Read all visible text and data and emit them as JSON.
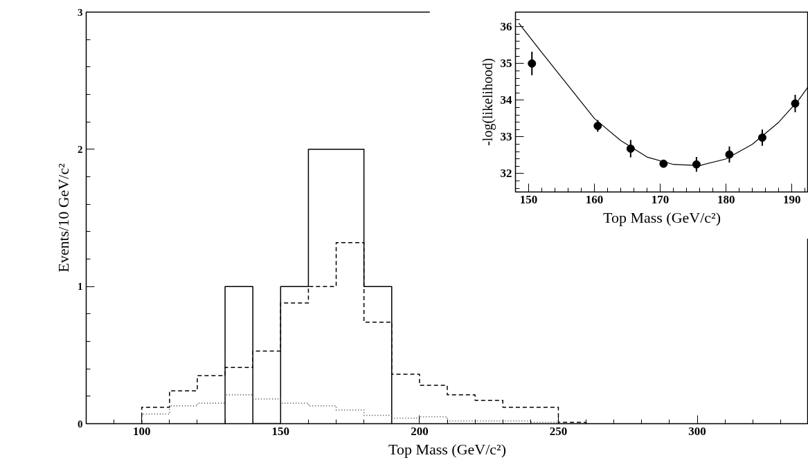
{
  "chart_data": [
    {
      "type": "histogram",
      "xlabel": "Top Mass (GeV/c²)",
      "ylabel": "Events/10 GeV/c²",
      "xlim": [
        80,
        340
      ],
      "ylim": [
        0,
        3
      ],
      "xticks": [
        100,
        150,
        200,
        250,
        300
      ],
      "yticks": [
        0,
        1,
        2,
        3
      ],
      "grid": false,
      "bins": [
        100,
        110,
        120,
        130,
        140,
        150,
        160,
        170,
        180,
        190,
        200,
        210,
        220,
        230,
        240,
        250,
        260
      ],
      "series": [
        {
          "color": "#000000",
          "line_style": "solid",
          "bins": [
            130,
            140,
            150,
            160,
            170,
            180,
            190
          ],
          "values": [
            1,
            0,
            1,
            2,
            2,
            1
          ]
        },
        {
          "color": "#000000",
          "line_style": "dashed",
          "values": [
            0.12,
            0.24,
            0.35,
            0.41,
            0.53,
            0.88,
            1.0,
            1.32,
            0.74,
            0.36,
            0.28,
            0.21,
            0.17,
            0.12,
            0.12,
            0.01
          ]
        },
        {
          "color": "#333333",
          "line_style": "dotted",
          "values": [
            0.07,
            0.13,
            0.15,
            0.21,
            0.18,
            0.15,
            0.13,
            0.1,
            0.06,
            0.04,
            0.05,
            0.02,
            0.02,
            0.02,
            0.01,
            0
          ]
        }
      ]
    },
    {
      "type": "scatter",
      "xlabel": "Top Mass (GeV/c²)",
      "ylabel": "-log(likelihood)",
      "xlim": [
        148,
        192.5
      ],
      "ylim": [
        31.5,
        36.4
      ],
      "xticks": [
        150,
        160,
        170,
        180,
        190
      ],
      "yticks": [
        32,
        33,
        34,
        35,
        36
      ],
      "grid": false,
      "series": [
        {
          "color": "#000000",
          "marker": "circle",
          "x": [
            150.5,
            160.5,
            165.5,
            170.5,
            175.5,
            180.5,
            185.5,
            190.5
          ],
          "values": [
            35.0,
            33.3,
            32.68,
            32.27,
            32.25,
            32.52,
            32.98,
            33.91
          ],
          "errors": [
            0.32,
            0.16,
            0.24,
            0.05,
            0.2,
            0.22,
            0.22,
            0.24
          ]
        },
        {
          "type": "line",
          "color": "#000000",
          "x": [
            148.5,
            152,
            156,
            160,
            164,
            168,
            172,
            176,
            180,
            184,
            188,
            191,
            192.4
          ],
          "values": [
            36.1,
            35.3,
            34.4,
            33.5,
            32.9,
            32.45,
            32.25,
            32.22,
            32.4,
            32.8,
            33.4,
            34.0,
            34.35
          ]
        }
      ]
    }
  ]
}
